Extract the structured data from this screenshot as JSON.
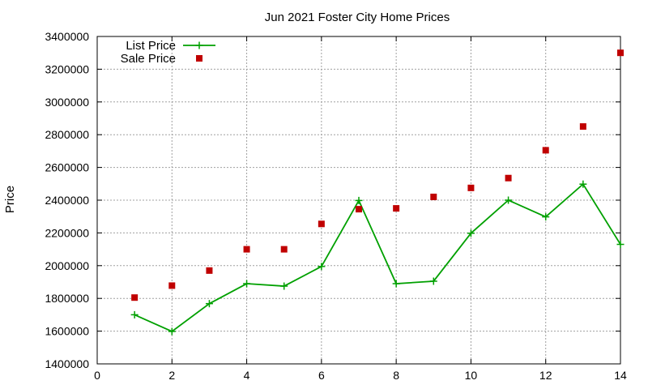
{
  "chart_data": {
    "type": "line",
    "title": "Jun 2021 Foster City Home Prices",
    "xlabel": "",
    "ylabel": "Price",
    "xlim": [
      0,
      14
    ],
    "ylim": [
      1400000,
      3400000
    ],
    "xticks": [
      0,
      2,
      4,
      6,
      8,
      10,
      12,
      14
    ],
    "yticks": [
      1400000,
      1600000,
      1800000,
      2000000,
      2200000,
      2400000,
      2600000,
      2800000,
      3000000,
      3200000,
      3400000
    ],
    "grid": true,
    "legend_position": "top-left",
    "series": [
      {
        "name": "List Price",
        "style": "line-with-plus-markers",
        "color": "#00a000",
        "x": [
          1,
          2,
          3,
          4,
          5,
          6,
          7,
          8,
          9,
          10,
          11,
          12,
          13,
          14
        ],
        "y": [
          1700000,
          1598000,
          1768000,
          1890000,
          1875000,
          1995000,
          2398000,
          1890000,
          1905000,
          2198000,
          2400000,
          2298000,
          2498000,
          2130000
        ]
      },
      {
        "name": "Sale Price",
        "style": "square-markers",
        "color": "#c00000",
        "x": [
          1,
          2,
          3,
          4,
          5,
          6,
          7,
          8,
          9,
          10,
          11,
          12,
          13,
          14
        ],
        "y": [
          1805000,
          1878000,
          1970000,
          2100000,
          2100000,
          2255000,
          2345000,
          2350000,
          2420000,
          2475000,
          2535000,
          2705000,
          2850000,
          3300000
        ]
      }
    ]
  }
}
